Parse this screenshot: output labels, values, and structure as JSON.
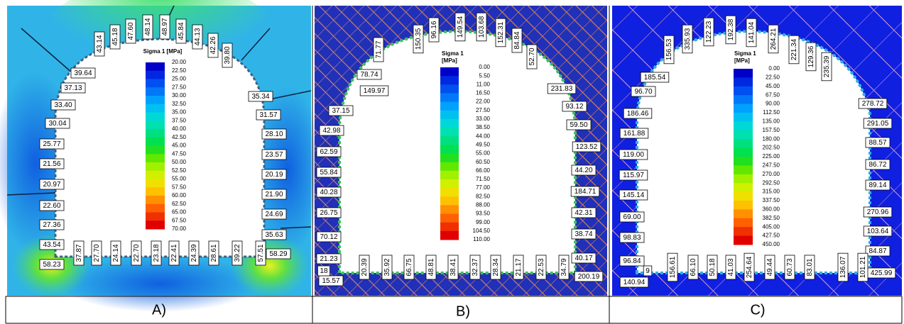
{
  "panels": [
    {
      "caption": "A)",
      "legend": {
        "title": [
          "Sigma 1 [MPa]"
        ],
        "values": [
          "20.00",
          "22.50",
          "25.00",
          "27.50",
          "30.00",
          "32.50",
          "35.00",
          "37.50",
          "40.00",
          "42.50",
          "45.00",
          "47.50",
          "50.00",
          "52.50",
          "55.00",
          "57.50",
          "60.00",
          "62.50",
          "65.00",
          "67.50",
          "70.00"
        ]
      },
      "labels": [
        "43.14",
        "45.18",
        "47.60",
        "48.14",
        "48.97",
        "45.84",
        "44.13",
        "42.26",
        "39.80",
        "39.64",
        "37.13",
        "33.40",
        "30.04",
        "25.77",
        "21.56",
        "20.97",
        "22.60",
        "27.36",
        "43.54",
        "58.23",
        "35.34",
        "31.57",
        "28.10",
        "23.57",
        "20.19",
        "21.90",
        "24.69",
        "35.63",
        "58.29",
        "37.87",
        "27.70",
        "24.14",
        "22.70",
        "23.18",
        "22.41",
        "24.39",
        "28.61",
        "39.22",
        "57.51"
      ]
    },
    {
      "caption": "B)",
      "legend": {
        "title": [
          "Sigma 1",
          "[MPa]"
        ],
        "values": [
          "0.00",
          "5.50",
          "11.00",
          "16.50",
          "22.00",
          "27.50",
          "33.00",
          "38.50",
          "44.00",
          "49.50",
          "55.00",
          "60.50",
          "66.00",
          "71.50",
          "77.00",
          "82.50",
          "88.00",
          "93.50",
          "99.00",
          "104.50",
          "110.00"
        ]
      },
      "labels": [
        "71.77",
        "150.35",
        "96.16",
        "149.54",
        "103.68",
        "152.31",
        "84.84",
        "52.70",
        "78.74",
        "149.97",
        "37.15",
        "42.98",
        "62.59",
        "55.84",
        "40.28",
        "26.75",
        "70.12",
        "21.23",
        "15.57",
        "18",
        "231.83",
        "93.12",
        "59.50",
        "123.52",
        "44.20",
        "184.71",
        "42.31",
        "38.74",
        "40.17",
        "200.19",
        "20.39",
        "35.92",
        "66.75",
        "48.81",
        "38.41",
        "32.37",
        "28.34",
        "21.17",
        "22.53",
        "34.79"
      ]
    },
    {
      "caption": "C)",
      "legend": {
        "title": [
          "Sigma 1",
          "[MPa]"
        ],
        "values": [
          "0.00",
          "22.50",
          "45.00",
          "67.50",
          "90.00",
          "112.50",
          "135.00",
          "157.50",
          "180.00",
          "202.50",
          "225.00",
          "247.50",
          "270.00",
          "292.50",
          "315.00",
          "337.50",
          "360.00",
          "382.50",
          "405.00",
          "427.50",
          "450.00"
        ]
      },
      "labels": [
        "156.53",
        "335.93",
        "122.23",
        "192.38",
        "141.04",
        "264.21",
        "221.34",
        "129.36",
        "235.39",
        "185.54",
        "96.70",
        "186.46",
        "161.88",
        "119.00",
        "115.97",
        "145.14",
        "69.00",
        "98.83",
        "96.84",
        "140.94",
        "9",
        "278.72",
        "291.05",
        "88.57",
        "86.72",
        "89.14",
        "270.96",
        "103.64",
        "84.87",
        "425.99",
        "156.61",
        "66.10",
        "50.18",
        "41.03",
        "254.64",
        "49.44",
        "60.73",
        "83.01",
        "136.07",
        "101.21"
      ]
    }
  ]
}
